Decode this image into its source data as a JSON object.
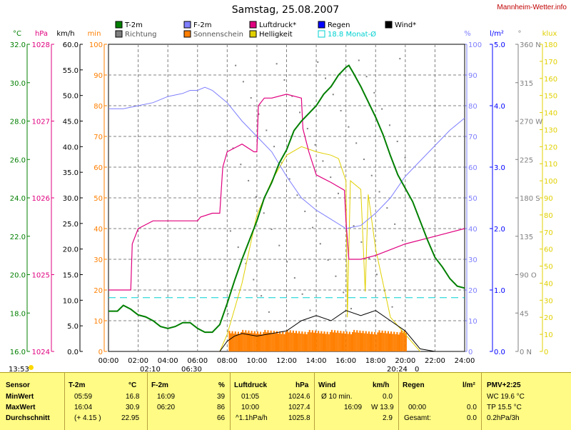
{
  "site": "Mannheim-Wetter.info",
  "title": "Samstag, 25.08.2007",
  "colors": {
    "temp": "#007f00",
    "direction": "#7f7f7f",
    "humidity": "#7f7fff",
    "sunshine": "#ff7f00",
    "pressure": "#e0007f",
    "brightness": "#e0d000",
    "rain": "#0000ff",
    "monthly_avg": "#00d0d0",
    "wind": "#000000",
    "grid": "#808080"
  },
  "legend": [
    {
      "label": "T-2m",
      "color": "#007f00"
    },
    {
      "label": "Richtung",
      "color": "#7f7f7f"
    },
    {
      "label": "F-2m",
      "color": "#7f7fff"
    },
    {
      "label": "Sonnenschein",
      "color": "#ff7f00"
    },
    {
      "label": "Luftdruck*",
      "color": "#e0007f"
    },
    {
      "label": "Helligkeit",
      "color": "#e0d000"
    },
    {
      "label": "Regen",
      "color": "#0000ff"
    },
    {
      "label": "18.8 Monat-Ø",
      "color": "#00d0d0"
    },
    {
      "label": "Wind*",
      "color": "#000000"
    }
  ],
  "axes": {
    "temp": {
      "unit": "°C",
      "color": "#007f00",
      "ticks": [
        "16.0",
        "18.0",
        "20.0",
        "22.0",
        "24.0",
        "26.0",
        "28.0",
        "30.0",
        "32.0"
      ]
    },
    "pressure": {
      "unit": "hPa",
      "color": "#e0007f",
      "ticks": [
        "1024",
        "1025",
        "1026",
        "1027",
        "1028"
      ]
    },
    "wind": {
      "unit": "km/h",
      "color": "#000000",
      "ticks": [
        "0.0",
        "5.0",
        "10.0",
        "15.0",
        "20.0",
        "25.0",
        "30.0",
        "35.0",
        "40.0",
        "45.0",
        "50.0",
        "55.0",
        "60.0"
      ]
    },
    "sun": {
      "unit": "min",
      "color": "#ff7f00",
      "ticks": [
        "0",
        "10",
        "20",
        "30",
        "40",
        "50",
        "60",
        "70",
        "80",
        "90",
        "100"
      ]
    },
    "humidity": {
      "unit": "%",
      "color": "#7f7fff",
      "ticks": [
        "0",
        "10",
        "20",
        "30",
        "40",
        "50",
        "60",
        "70",
        "80",
        "90",
        "100"
      ]
    },
    "rain": {
      "unit": "l/m²",
      "color": "#0000ff",
      "ticks": [
        "0.0",
        "1.0",
        "2.0",
        "3.0",
        "4.0",
        "5.0"
      ]
    },
    "direction": {
      "unit": "°",
      "color": "#7f7f7f",
      "ticks": [
        "0 N",
        "45",
        "90 O",
        "135",
        "180 S",
        "225",
        "270 W",
        "315",
        "360 N"
      ]
    },
    "brightness": {
      "unit": "klux",
      "color": "#e0d000",
      "ticks": [
        "0",
        "10",
        "20",
        "30",
        "40",
        "50",
        "60",
        "70",
        "80",
        "90",
        "100",
        "110",
        "120",
        "130",
        "140",
        "150",
        "160",
        "170",
        "180"
      ]
    },
    "time_ticks": [
      "00:00",
      "02:00",
      "04:00",
      "06:00",
      "08:00",
      "10:00",
      "12:00",
      "14:00",
      "16:00",
      "18:00",
      "20:00",
      "22:00",
      "24:00"
    ]
  },
  "chart_data": {
    "type": "line",
    "title": "Samstag, 25.08.2007",
    "x_unit": "time of day (h)",
    "xlim": [
      0,
      24
    ],
    "series": [
      {
        "name": "T-2m",
        "unit": "°C",
        "ylim": [
          16,
          32
        ],
        "points": [
          [
            0,
            18.1
          ],
          [
            0.6,
            18.1
          ],
          [
            1,
            18.4
          ],
          [
            1.5,
            18.2
          ],
          [
            2,
            17.9
          ],
          [
            2.5,
            17.8
          ],
          [
            3,
            17.6
          ],
          [
            3.5,
            17.3
          ],
          [
            4,
            17.2
          ],
          [
            4.5,
            17.3
          ],
          [
            5,
            17.5
          ],
          [
            5.5,
            17.5
          ],
          [
            6,
            17.2
          ],
          [
            6.5,
            17.0
          ],
          [
            7,
            17.0
          ],
          [
            7.5,
            17.4
          ],
          [
            8,
            18.5
          ],
          [
            8.5,
            19.7
          ],
          [
            9,
            20.8
          ],
          [
            9.5,
            21.8
          ],
          [
            10,
            22.8
          ],
          [
            10.5,
            24.0
          ],
          [
            11,
            24.8
          ],
          [
            11.5,
            25.8
          ],
          [
            12,
            26.5
          ],
          [
            12.5,
            27.5
          ],
          [
            13,
            28.0
          ],
          [
            13.5,
            28.4
          ],
          [
            14,
            28.8
          ],
          [
            14.5,
            29.4
          ],
          [
            15,
            29.8
          ],
          [
            15.5,
            30.4
          ],
          [
            16,
            30.8
          ],
          [
            16.2,
            30.9
          ],
          [
            16.5,
            30.5
          ],
          [
            17,
            29.8
          ],
          [
            17.5,
            29.0
          ],
          [
            18,
            28.2
          ],
          [
            18.5,
            27.3
          ],
          [
            19,
            26.2
          ],
          [
            19.5,
            25.2
          ],
          [
            20,
            24.5
          ],
          [
            20.5,
            23.8
          ],
          [
            21,
            22.8
          ],
          [
            21.5,
            21.8
          ],
          [
            22,
            20.9
          ],
          [
            22.5,
            20.4
          ],
          [
            23,
            19.8
          ],
          [
            23.5,
            19.4
          ],
          [
            24,
            19.3
          ]
        ]
      },
      {
        "name": "F-2m",
        "unit": "%",
        "ylim": [
          0,
          100
        ],
        "points": [
          [
            0,
            79
          ],
          [
            1,
            79
          ],
          [
            2,
            80
          ],
          [
            3,
            81
          ],
          [
            4,
            83
          ],
          [
            5,
            84
          ],
          [
            5.5,
            85
          ],
          [
            6,
            85
          ],
          [
            6.5,
            86
          ],
          [
            7,
            85
          ],
          [
            8,
            81
          ],
          [
            9,
            75
          ],
          [
            10,
            70
          ],
          [
            11,
            65
          ],
          [
            12,
            57
          ],
          [
            13,
            50
          ],
          [
            14,
            46
          ],
          [
            15,
            43
          ],
          [
            16,
            40
          ],
          [
            17,
            41
          ],
          [
            18,
            45
          ],
          [
            19,
            50
          ],
          [
            20,
            57
          ],
          [
            21,
            62
          ],
          [
            22,
            67
          ],
          [
            23,
            72
          ],
          [
            24,
            76
          ]
        ]
      },
      {
        "name": "Luftdruck*",
        "unit": "hPa",
        "ylim": [
          1024,
          1028
        ],
        "points": [
          [
            0,
            1024.8
          ],
          [
            1.5,
            1024.8
          ],
          [
            1.6,
            1025.4
          ],
          [
            2,
            1025.6
          ],
          [
            3,
            1025.7
          ],
          [
            4,
            1025.7
          ],
          [
            6,
            1025.7
          ],
          [
            6.2,
            1025.75
          ],
          [
            7,
            1025.8
          ],
          [
            7.5,
            1025.8
          ],
          [
            7.7,
            1026.4
          ],
          [
            8,
            1026.6
          ],
          [
            9,
            1026.7
          ],
          [
            9.8,
            1026.6
          ],
          [
            10,
            1026.6
          ],
          [
            10.1,
            1027.2
          ],
          [
            10.5,
            1027.3
          ],
          [
            11,
            1027.3
          ],
          [
            12,
            1027.35
          ],
          [
            13,
            1027.3
          ],
          [
            13.1,
            1026.9
          ],
          [
            13.5,
            1026.6
          ],
          [
            14,
            1026.3
          ],
          [
            15,
            1026.2
          ],
          [
            15.9,
            1026.1
          ],
          [
            16,
            1025.7
          ],
          [
            16.2,
            1025.2
          ],
          [
            17,
            1025.2
          ],
          [
            18,
            1025.25
          ],
          [
            20,
            1025.4
          ],
          [
            22,
            1025.5
          ],
          [
            24,
            1025.6
          ]
        ]
      },
      {
        "name": "Wind*",
        "unit": "km/h",
        "ylim": [
          0,
          60
        ],
        "points": [
          [
            7.5,
            0
          ],
          [
            8,
            2
          ],
          [
            8.5,
            3
          ],
          [
            9,
            3.5
          ],
          [
            10,
            3
          ],
          [
            11,
            3.5
          ],
          [
            12,
            4
          ],
          [
            13,
            6
          ],
          [
            14,
            7
          ],
          [
            15,
            6
          ],
          [
            16,
            8
          ],
          [
            17,
            7
          ],
          [
            18,
            8
          ],
          [
            19,
            6
          ],
          [
            20,
            4
          ],
          [
            21,
            0.5
          ],
          [
            22,
            0
          ],
          [
            24,
            0
          ]
        ]
      },
      {
        "name": "Sonnenschein",
        "unit": "min",
        "ylim": [
          0,
          100
        ],
        "points": [
          [
            8,
            3
          ],
          [
            9,
            6
          ],
          [
            10,
            6
          ],
          [
            11,
            6
          ],
          [
            12,
            6
          ],
          [
            13,
            6
          ],
          [
            14,
            6
          ],
          [
            15,
            6
          ],
          [
            16,
            6
          ],
          [
            17,
            6
          ],
          [
            18,
            6
          ],
          [
            19,
            6
          ],
          [
            19.8,
            6
          ],
          [
            20,
            5
          ]
        ]
      },
      {
        "name": "Helligkeit",
        "unit": "klux",
        "ylim": [
          0,
          180
        ],
        "points": [
          [
            7.5,
            0
          ],
          [
            8,
            10
          ],
          [
            9,
            40
          ],
          [
            10,
            80
          ],
          [
            11,
            100
          ],
          [
            12,
            115
          ],
          [
            13,
            120
          ],
          [
            14,
            117
          ],
          [
            15,
            115
          ],
          [
            15.5,
            113
          ],
          [
            16,
            100
          ],
          [
            16.1,
            20
          ],
          [
            16.3,
            100
          ],
          [
            17,
            95
          ],
          [
            17.3,
            35
          ],
          [
            17.5,
            92
          ],
          [
            18,
            60
          ],
          [
            19,
            20
          ],
          [
            20,
            10
          ],
          [
            21,
            0
          ]
        ]
      },
      {
        "name": "18.8 Monat-Ø",
        "unit": "°C",
        "ylim": [
          16,
          32
        ],
        "constant": 18.8
      }
    ]
  },
  "markers": {
    "below_left": "13:53",
    "sunrise": "02:10",
    "sunrise2": "06:30",
    "sunset": "20:24",
    "sunset_count": "0"
  },
  "summary": {
    "headers": [
      {
        "label": "Sensor",
        "unit": ""
      },
      {
        "label": "T-2m",
        "unit": "°C"
      },
      {
        "label": "F-2m",
        "unit": "%"
      },
      {
        "label": "Luftdruck",
        "unit": "hPa"
      },
      {
        "label": "Wind",
        "unit": "km/h"
      },
      {
        "label": "Regen",
        "unit": "l/m²"
      },
      {
        "label": "PMV+2:25",
        "unit": ""
      }
    ],
    "rows": [
      {
        "label": "MinWert",
        "cells": [
          "05:59",
          "16.8",
          "16:09",
          "39",
          "01:05",
          "1024.6",
          "Ø 10 min.",
          "0.0",
          "",
          "",
          "WC 19.6 °C"
        ]
      },
      {
        "label": "MaxWert",
        "cells": [
          "16:04",
          "30.9",
          "06:20",
          "86",
          "10:00",
          "1027.4",
          "16:09",
          "W 13.9",
          "00:00",
          "0.0",
          "TP 15.5 °C"
        ]
      },
      {
        "label": "Durchschnitt",
        "cells": [
          "(+ 4.15 )",
          "22.95",
          "",
          "66",
          "^1.1hPa/h",
          "1025.8",
          "",
          "2.9",
          "Gesamt:",
          "0.0",
          "0.2hPa/3h"
        ]
      }
    ]
  }
}
